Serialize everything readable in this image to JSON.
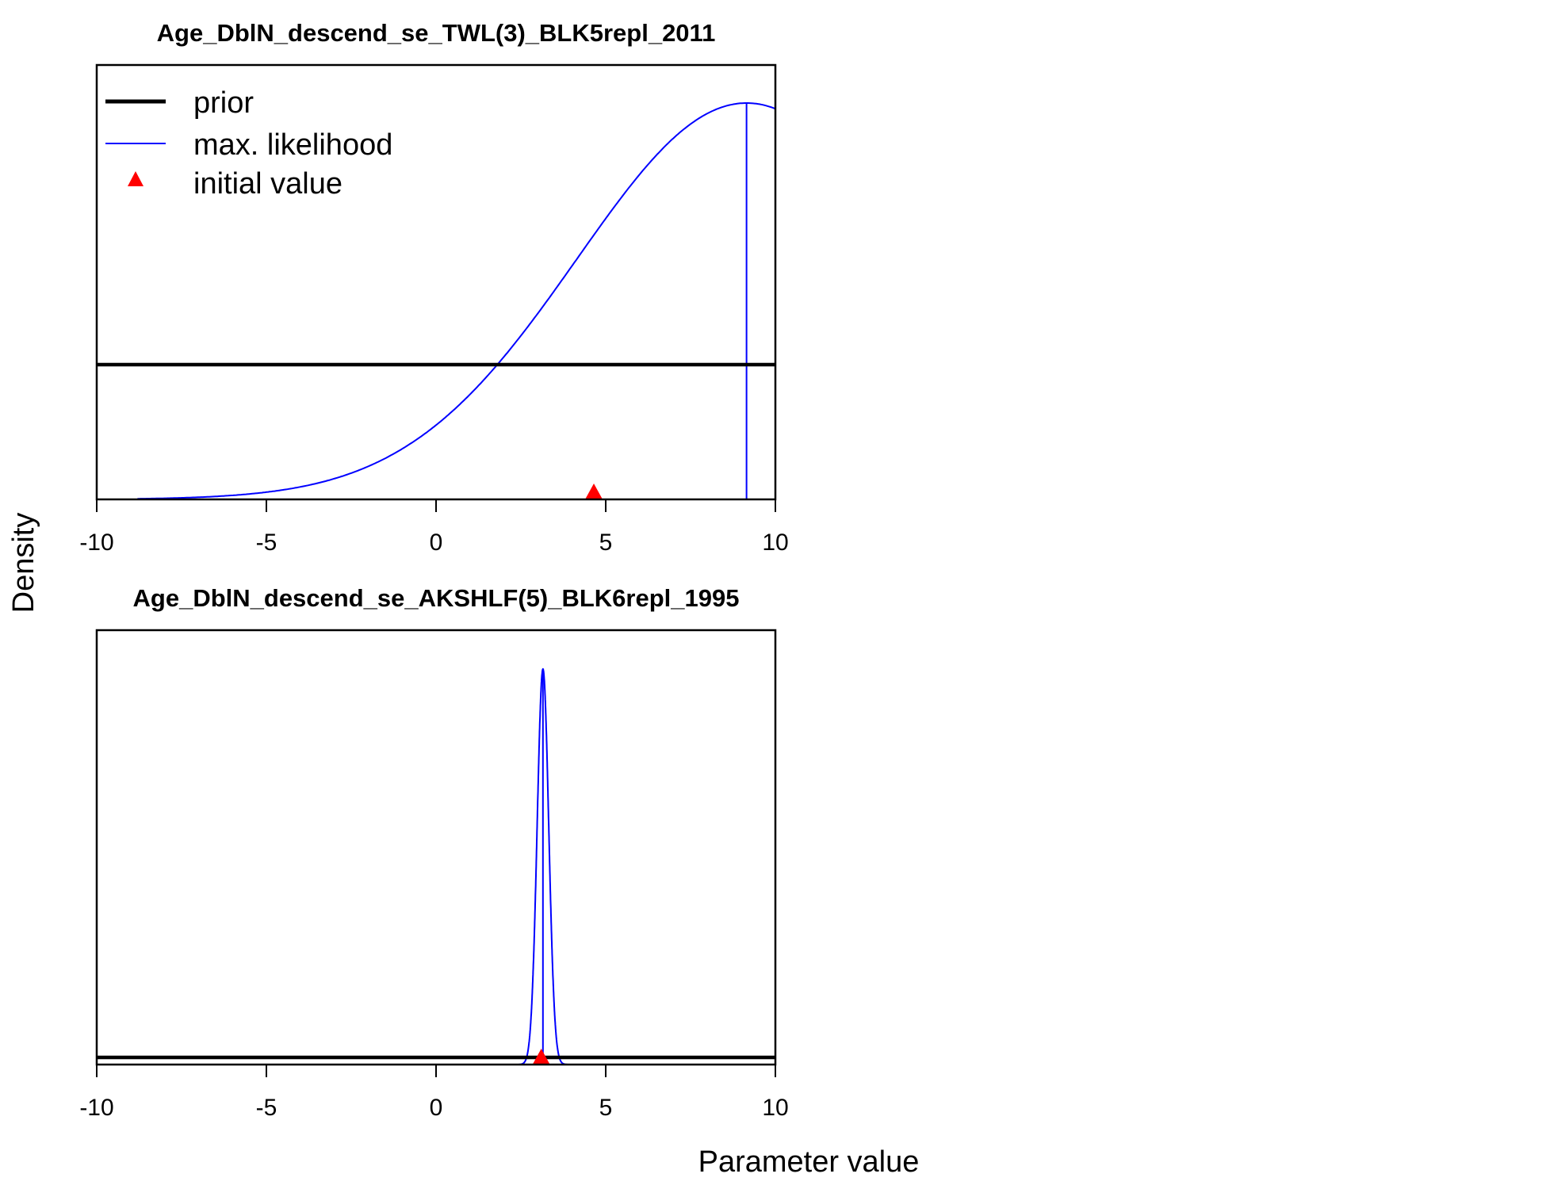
{
  "figure": {
    "ylabel": "Density",
    "xlabel": "Parameter value"
  },
  "legend": {
    "items": [
      {
        "label": "prior",
        "color": "#000000",
        "kind": "thick-line"
      },
      {
        "label": "max. likelihood",
        "color": "#0000ff",
        "kind": "thin-line"
      },
      {
        "label": "initial value",
        "color": "#ff0000",
        "kind": "triangle"
      }
    ]
  },
  "chart_data": [
    {
      "type": "line",
      "title": "Age_DblN_descend_se_TWL(3)_BLK5repl_2011",
      "xlim": [
        -10,
        10
      ],
      "xticks": [
        "-10",
        "-5",
        "0",
        "5",
        "10"
      ],
      "prior": {
        "type": "uniform",
        "relative_density": 0.34
      },
      "max_likelihood": {
        "shape": "normal",
        "mean": 9.15,
        "sd": 5.0,
        "lower_bound": -8.8,
        "estimate": 9.15
      },
      "initial_value": 4.65,
      "colors": {
        "prior": "#000000",
        "likelihood": "#0000ff",
        "initial": "#ff0000"
      }
    },
    {
      "type": "line",
      "title": "Age_DblN_descend_se_AKSHLF(5)_BLK6repl_1995",
      "xlim": [
        -10,
        10
      ],
      "xticks": [
        "-10",
        "-5",
        "0",
        "5",
        "10"
      ],
      "prior": {
        "type": "uniform",
        "relative_density": 0.018
      },
      "max_likelihood": {
        "shape": "normal",
        "mean": 3.15,
        "sd": 0.17,
        "estimate": 3.15
      },
      "initial_value": 3.1,
      "colors": {
        "prior": "#000000",
        "likelihood": "#0000ff",
        "initial": "#ff0000"
      }
    }
  ]
}
